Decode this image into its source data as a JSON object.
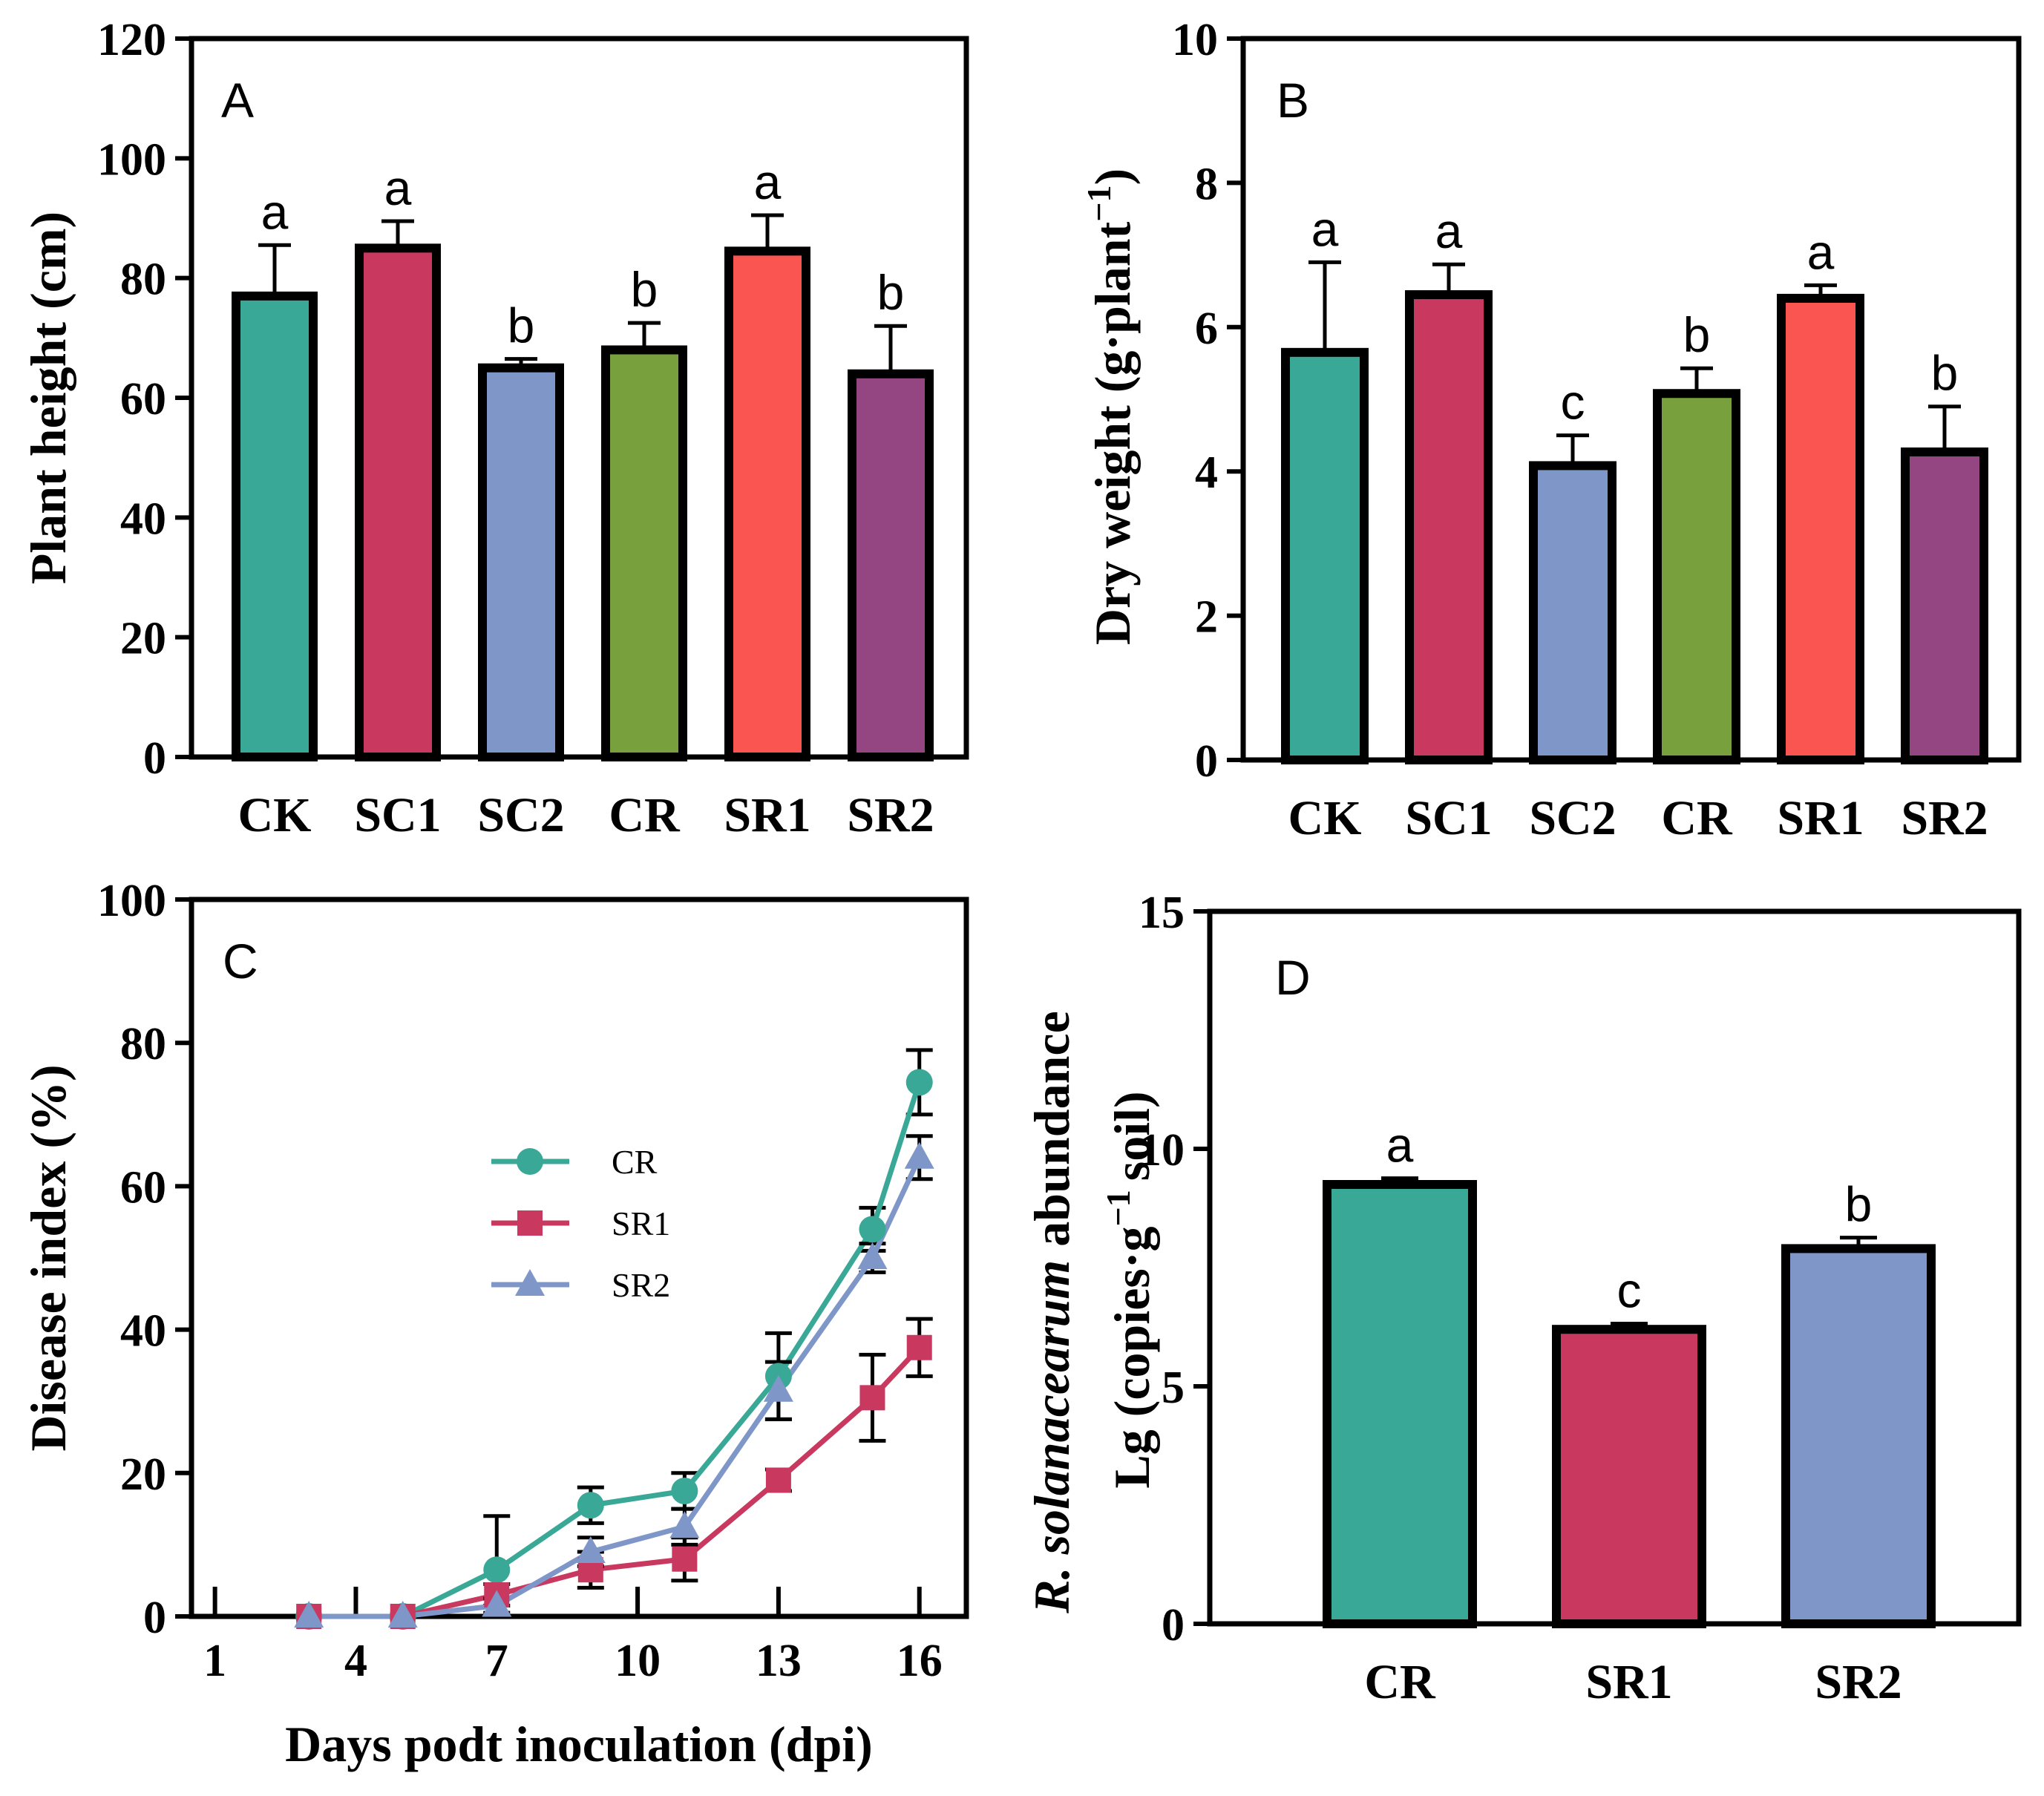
{
  "chart_data": [
    {
      "panel": "A",
      "type": "bar",
      "title": "",
      "xlabel": "",
      "ylabel": "Plant height (cm)",
      "ylim": [
        0,
        120
      ],
      "yticks": [
        0,
        20,
        40,
        60,
        80,
        100,
        120
      ],
      "categories": [
        "CK",
        "SC1",
        "SC2",
        "CR",
        "SR1",
        "SR2"
      ],
      "values": [
        77,
        85,
        65,
        68,
        84.5,
        64
      ],
      "errors": [
        8.5,
        4.5,
        1.5,
        4.5,
        6,
        8
      ],
      "letters": [
        "a",
        "a",
        "b",
        "b",
        "a",
        "b"
      ],
      "colors": [
        "#3aa896",
        "#c9385f",
        "#7f96c8",
        "#78a03c",
        "#fa5550",
        "#944682"
      ]
    },
    {
      "panel": "B",
      "type": "bar",
      "title": "",
      "xlabel": "",
      "ylabel_parts": [
        "Dry weight (g·plant",
        "−1",
        ")"
      ],
      "ylim": [
        0,
        10
      ],
      "yticks": [
        0,
        2,
        4,
        6,
        8,
        10
      ],
      "categories": [
        "CK",
        "SC1",
        "SC2",
        "CR",
        "SR1",
        "SR2"
      ],
      "values": [
        5.65,
        6.45,
        4.08,
        5.08,
        6.4,
        4.27
      ],
      "errors": [
        1.25,
        0.42,
        0.42,
        0.35,
        0.18,
        0.63
      ],
      "letters": [
        "a",
        "a",
        "c",
        "b",
        "a",
        "b"
      ],
      "colors": [
        "#3aa896",
        "#c9385f",
        "#7f96c8",
        "#78a03c",
        "#fa5550",
        "#944682"
      ]
    },
    {
      "panel": "C",
      "type": "line",
      "title": "",
      "xlabel": "Days podt inoculation (dpi)",
      "ylabel": "Disease index (%)",
      "xlim": [
        0.5,
        17
      ],
      "ylim": [
        0,
        100
      ],
      "xticks": [
        1,
        4,
        7,
        10,
        13,
        16
      ],
      "yticks": [
        0,
        20,
        40,
        60,
        80,
        100
      ],
      "legend_position": "center",
      "series": [
        {
          "name": "CR",
          "color": "#3aa896",
          "marker": "circle",
          "x": [
            3,
            5,
            7,
            9,
            11,
            13,
            15,
            16
          ],
          "y": [
            0,
            0,
            6.5,
            15.5,
            17.5,
            33.5,
            54,
            74.5
          ],
          "err": [
            0,
            0,
            7.5,
            2.5,
            2.5,
            6,
            3,
            4.5
          ]
        },
        {
          "name": "SR1",
          "color": "#c9385f",
          "marker": "square",
          "x": [
            3,
            5,
            7,
            9,
            11,
            13,
            15,
            16
          ],
          "y": [
            0,
            0,
            3,
            6.5,
            8,
            19,
            30.5,
            37.5
          ],
          "err": [
            0,
            0,
            1.5,
            2.5,
            3,
            1.5,
            6,
            4
          ]
        },
        {
          "name": "SR2",
          "color": "#7f96c8",
          "marker": "triangle",
          "x": [
            3,
            5,
            7,
            9,
            11,
            13,
            15,
            16
          ],
          "y": [
            0,
            0,
            1.5,
            9,
            12.5,
            31.5,
            50,
            64
          ],
          "err": [
            0,
            0,
            1,
            2,
            2.5,
            4,
            2,
            3
          ]
        }
      ]
    },
    {
      "panel": "D",
      "type": "bar",
      "title": "",
      "xlabel": "",
      "ylabel_line1": [
        "R. solanacearum",
        "abundance"
      ],
      "ylabel_line2": [
        "Lg (copies·g",
        "−1",
        "soil)"
      ],
      "ylim": [
        0,
        15
      ],
      "yticks": [
        0,
        5,
        10,
        15
      ],
      "categories": [
        "CR",
        "SR1",
        "SR2"
      ],
      "values": [
        9.25,
        6.2,
        7.9
      ],
      "errors": [
        0.13,
        0.12,
        0.23
      ],
      "letters": [
        "a",
        "c",
        "b"
      ],
      "colors": [
        "#3aa896",
        "#c9385f",
        "#7f96c8"
      ]
    }
  ]
}
